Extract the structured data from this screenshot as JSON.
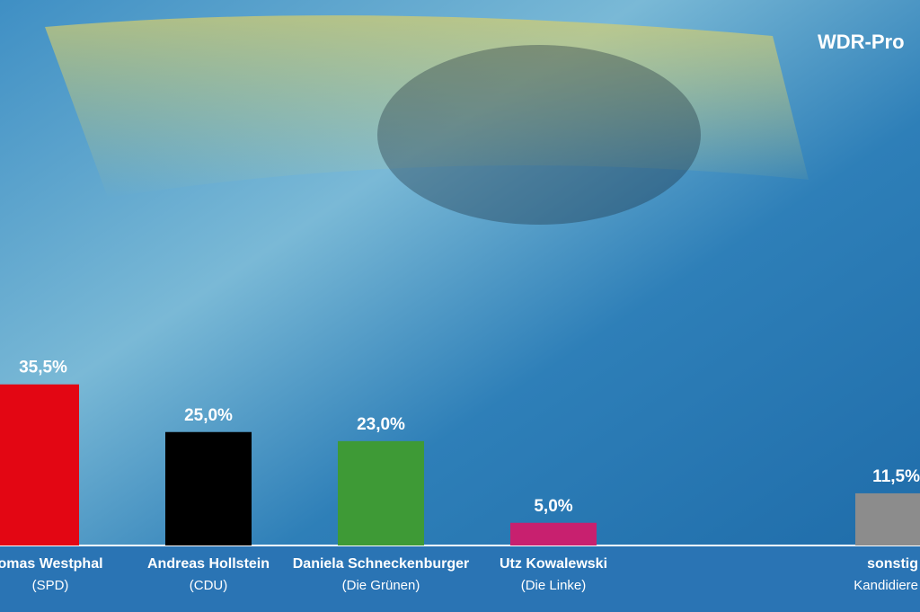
{
  "chart_data": {
    "type": "bar",
    "title": "WDR-Pro",
    "categories": [
      "omas Westphal",
      "Andreas Hollstein",
      "Daniela Schneckenburger",
      "Utz Kowalewski",
      "sonstig"
    ],
    "parties": [
      "(SPD)",
      "(CDU)",
      "(Die Grünen)",
      "(Die Linke)",
      "Kandidiere"
    ],
    "values": [
      35.5,
      25.0,
      23.0,
      5.0,
      11.5
    ],
    "value_labels": [
      "35,5%",
      "25,0%",
      "23,0%",
      "5,0%",
      "11,5%"
    ],
    "colors": [
      "#e30613",
      "#000000",
      "#3e9a36",
      "#c8206f",
      "#8c8c8c"
    ]
  }
}
